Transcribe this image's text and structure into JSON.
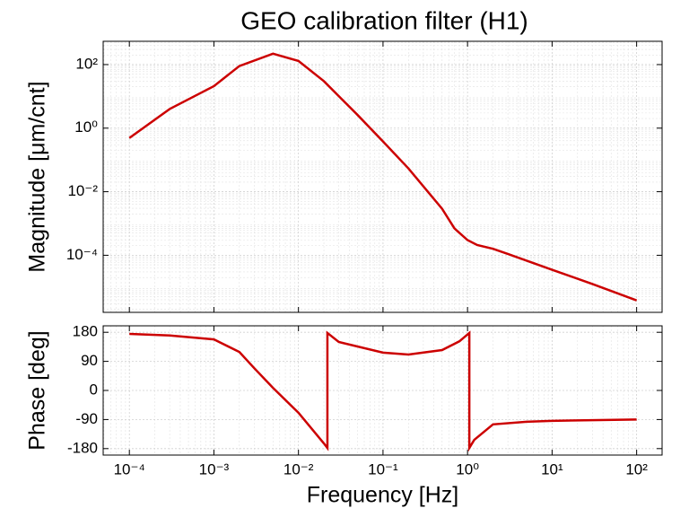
{
  "chart_data": [
    {
      "type": "line",
      "title": "GEO calibration filter (H1)",
      "ylabel": "Magnitude [μm/cnt]",
      "x": [
        0.0001,
        0.0003,
        0.001,
        0.002,
        0.005,
        0.01,
        0.02,
        0.05,
        0.1,
        0.2,
        0.5,
        0.7,
        1,
        1.3,
        2,
        3,
        10,
        30,
        100
      ],
      "values": [
        0.49,
        4,
        21,
        90,
        220,
        130,
        30,
        2.6,
        0.38,
        0.054,
        0.0029,
        0.0007,
        0.0003,
        0.00021,
        0.00016,
        0.00011,
        3.5e-05,
        1.25e-05,
        3.8e-06
      ],
      "color": "#cc0000",
      "xscale": "log",
      "yscale": "log",
      "grid": true,
      "xlim": [
        4.9e-05,
        200
      ],
      "ylim": [
        1.6e-06,
        540
      ],
      "xticks": [
        {
          "value": 0.0001,
          "label": "10⁻⁴"
        },
        {
          "value": 0.001,
          "label": "10⁻³"
        },
        {
          "value": 0.01,
          "label": "10⁻²"
        },
        {
          "value": 0.1,
          "label": "10⁻¹"
        },
        {
          "value": 1,
          "label": "10⁰"
        },
        {
          "value": 10,
          "label": "10¹"
        },
        {
          "value": 100,
          "label": "10²"
        }
      ],
      "yticks": [
        {
          "value": 0.0001,
          "label": "10⁻⁴"
        },
        {
          "value": 0.01,
          "label": "10⁻²"
        },
        {
          "value": 1,
          "label": "10⁰"
        },
        {
          "value": 100,
          "label": "10²"
        }
      ]
    },
    {
      "type": "line",
      "ylabel": "Phase [deg]",
      "xlabel": "Frequency [Hz]",
      "x": [
        0.0001,
        0.0003,
        0.001,
        0.002,
        0.003,
        0.005,
        0.01,
        0.02,
        0.022,
        0.022,
        0.03,
        0.1,
        0.2,
        0.5,
        0.8,
        1.05,
        1.05,
        1.2,
        2,
        5,
        10,
        100
      ],
      "values": [
        175,
        170,
        158,
        119,
        69,
        8,
        -69,
        -164,
        -178,
        178,
        150,
        117,
        111,
        125,
        152,
        178,
        -178,
        -153,
        -105,
        -97,
        -94,
        -90
      ],
      "color": "#cc0000",
      "xscale": "log",
      "grid": true,
      "xlim": [
        4.9e-05,
        200
      ],
      "ylim": [
        -200,
        200
      ],
      "xticks": [
        {
          "value": 0.0001,
          "label": "10⁻⁴"
        },
        {
          "value": 0.001,
          "label": "10⁻³"
        },
        {
          "value": 0.01,
          "label": "10⁻²"
        },
        {
          "value": 0.1,
          "label": "10⁻¹"
        },
        {
          "value": 1,
          "label": "10⁰"
        },
        {
          "value": 10,
          "label": "10¹"
        },
        {
          "value": 100,
          "label": "10²"
        }
      ],
      "yticks": [
        -180,
        -90,
        0,
        90,
        180
      ]
    }
  ]
}
